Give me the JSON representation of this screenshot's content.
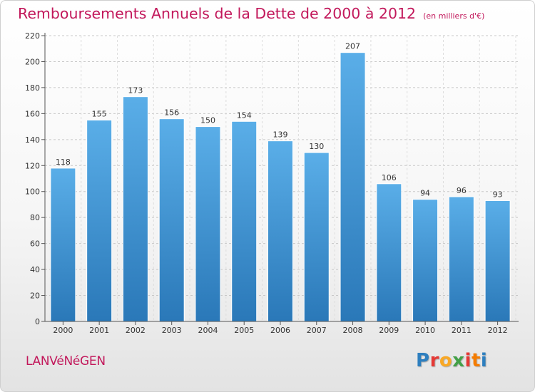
{
  "header": {
    "title": "Remboursements Annuels de la Dette de 2000 à 2012",
    "subtitle": "(en milliers d'€)"
  },
  "footer": {
    "commune": "LANVéNéGEN",
    "logo": [
      {
        "char": "P",
        "color": "#2e7fbf"
      },
      {
        "char": "r",
        "color": "#e53935"
      },
      {
        "char": "o",
        "color": "#f9a825"
      },
      {
        "char": "x",
        "color": "#43a047"
      },
      {
        "char": "i",
        "color": "#e53935"
      },
      {
        "char": "t",
        "color": "#f57c00"
      },
      {
        "char": "i",
        "color": "#2e7fbf"
      }
    ]
  },
  "colors": {
    "bar_top": "#5aaee8",
    "bar_bottom": "#2a78b8",
    "title": "#c2185b"
  },
  "chart_data": {
    "type": "bar",
    "categories": [
      "2000",
      "2001",
      "2002",
      "2003",
      "2004",
      "2005",
      "2006",
      "2007",
      "2008",
      "2009",
      "2010",
      "2011",
      "2012"
    ],
    "values": [
      118,
      155,
      173,
      156,
      150,
      154,
      139,
      130,
      207,
      106,
      94,
      96,
      93
    ],
    "ylim": [
      0,
      220
    ],
    "yticks": [
      0,
      20,
      40,
      60,
      80,
      100,
      120,
      140,
      160,
      180,
      200,
      220
    ],
    "grid": true,
    "data_labels": true
  }
}
